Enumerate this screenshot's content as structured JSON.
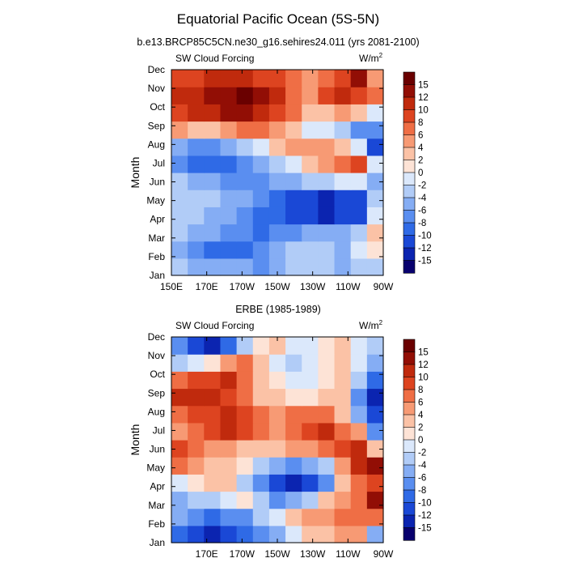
{
  "title": "Equatorial Pacific Ocean (5S-5N)",
  "subtitle": "b.e13.BRCP85C5CN.ne30_g16.sehires24.011 (yrs 2081-2100)",
  "chart_data": [
    {
      "type": "heatmap",
      "title": "b.e13.BRCP85C5CN.ne30_g16.sehires24.011 (yrs 2081-2100)",
      "left_label": "SW Cloud Forcing",
      "units": "W/m",
      "units_sup": "2",
      "ylabel": "Month",
      "xlabel": "",
      "months": [
        "Jan",
        "Feb",
        "Mar",
        "Apr",
        "May",
        "Jun",
        "Jul",
        "Aug",
        "Sep",
        "Oct",
        "Nov",
        "Dec"
      ],
      "x_ticks": [
        "150E",
        "170E",
        "170W",
        "150W",
        "130W",
        "110W",
        "90W"
      ],
      "x_range": [
        150,
        270
      ],
      "levels": [
        -15,
        -12,
        -10,
        -8,
        -6,
        -4,
        -2,
        0,
        2,
        4,
        6,
        8,
        10,
        12,
        15
      ],
      "rows": [
        [
          -4,
          -5,
          -6,
          -5,
          -6,
          -7,
          -6,
          -4,
          -3,
          -4,
          -5,
          -4,
          -3
        ],
        [
          -6,
          -8,
          -9,
          -10,
          -9,
          -8,
          -6,
          -4,
          -3,
          -4,
          -5,
          -2,
          0
        ],
        [
          -4,
          -5,
          -6,
          -7,
          -8,
          -9,
          -8,
          -7,
          -6,
          -5,
          -6,
          -4,
          3
        ],
        [
          -3,
          -4,
          -5,
          -6,
          -8,
          -9,
          -10,
          -11,
          -12,
          -13,
          -12,
          -11,
          -2
        ],
        [
          -4,
          -3,
          -4,
          -5,
          -6,
          -8,
          -10,
          -11,
          -12,
          -13,
          -12,
          -11,
          -4
        ],
        [
          -4,
          -5,
          -6,
          -7,
          -8,
          -7,
          -6,
          -5,
          -4,
          -3,
          -2,
          -1,
          -5
        ],
        [
          -8,
          -9,
          -10,
          -9,
          -8,
          -6,
          -4,
          -1,
          2,
          4,
          6,
          8,
          -2
        ],
        [
          -6,
          -7,
          -8,
          -6,
          -4,
          -1,
          2,
          4,
          5,
          4,
          2,
          -2,
          -12
        ],
        [
          4,
          3,
          3,
          5,
          6,
          7,
          5,
          3,
          -1,
          -2,
          -4,
          -8,
          -8
        ],
        [
          9,
          10,
          11,
          12,
          12,
          11,
          9,
          6,
          2,
          3,
          5,
          3,
          -2
        ],
        [
          10,
          11,
          12,
          13,
          15,
          12,
          10,
          7,
          4,
          8,
          10,
          8,
          6
        ],
        [
          8,
          9,
          10,
          11,
          10,
          9,
          8,
          6,
          4,
          6,
          8,
          12,
          4
        ]
      ]
    },
    {
      "type": "heatmap",
      "title": "ERBE (1985-1989)",
      "left_label": "SW Cloud Forcing",
      "units": "W/m",
      "units_sup": "2",
      "ylabel": "Month",
      "xlabel": "",
      "months": [
        "Jan",
        "Feb",
        "Mar",
        "Apr",
        "May",
        "Jun",
        "Jul",
        "Aug",
        "Sep",
        "Oct",
        "Nov",
        "Dec"
      ],
      "x_ticks": [
        "170E",
        "170W",
        "150W",
        "130W",
        "110W",
        "90W"
      ],
      "x_range": [
        150,
        270
      ],
      "levels": [
        -15,
        -12,
        -10,
        -8,
        -6,
        -4,
        -2,
        0,
        2,
        4,
        6,
        8,
        10,
        12,
        15
      ],
      "rows": [
        [
          -10,
          -12,
          -14,
          -12,
          -10,
          -8,
          -6,
          -2,
          2,
          3,
          4,
          5,
          -6
        ],
        [
          -6,
          -8,
          -9,
          -8,
          -7,
          -4,
          -2,
          2,
          4,
          5,
          6,
          7,
          6
        ],
        [
          -5,
          -4,
          -3,
          -2,
          0,
          -4,
          -8,
          -6,
          -3,
          2,
          5,
          6,
          12
        ],
        [
          -2,
          0,
          2,
          3,
          -4,
          -8,
          -12,
          -14,
          -12,
          -8,
          2,
          6,
          8
        ],
        [
          6,
          4,
          2,
          3,
          0,
          -4,
          -6,
          -8,
          -6,
          -3,
          4,
          10,
          12
        ],
        [
          8,
          6,
          5,
          4,
          3,
          2,
          3,
          4,
          5,
          6,
          8,
          10,
          2
        ],
        [
          4,
          6,
          8,
          10,
          9,
          6,
          5,
          6,
          8,
          10,
          6,
          4,
          -8
        ],
        [
          6,
          8,
          9,
          10,
          8,
          6,
          5,
          6,
          7,
          6,
          3,
          -6,
          -12
        ],
        [
          10,
          11,
          10,
          9,
          6,
          3,
          2,
          1,
          0,
          3,
          2,
          -8,
          -14
        ],
        [
          6,
          8,
          9,
          10,
          6,
          2,
          0,
          -1,
          -2,
          1,
          3,
          -4,
          -10
        ],
        [
          -4,
          -2,
          0,
          4,
          6,
          2,
          -2,
          -3,
          -2,
          0,
          2,
          -2,
          -6
        ],
        [
          -8,
          -12,
          -14,
          -10,
          -4,
          0,
          2,
          -1,
          -2,
          1,
          3,
          -1,
          -4
        ]
      ]
    }
  ],
  "colorbar": {
    "colors": [
      "#08006e",
      "#0b24b0",
      "#1a48d6",
      "#2f6ae6",
      "#5a8ef0",
      "#85adf4",
      "#b1ccf7",
      "#dbe8fb",
      "#fde3d6",
      "#fbc2a6",
      "#f79a74",
      "#ef6e45",
      "#dd4420",
      "#c02a0d",
      "#920e05",
      "#6a0000"
    ],
    "labels": [
      "15",
      "12",
      "10",
      "8",
      "6",
      "4",
      "2",
      "0",
      "-2",
      "-4",
      "-6",
      "-8",
      "-10",
      "-12",
      "-15"
    ]
  }
}
